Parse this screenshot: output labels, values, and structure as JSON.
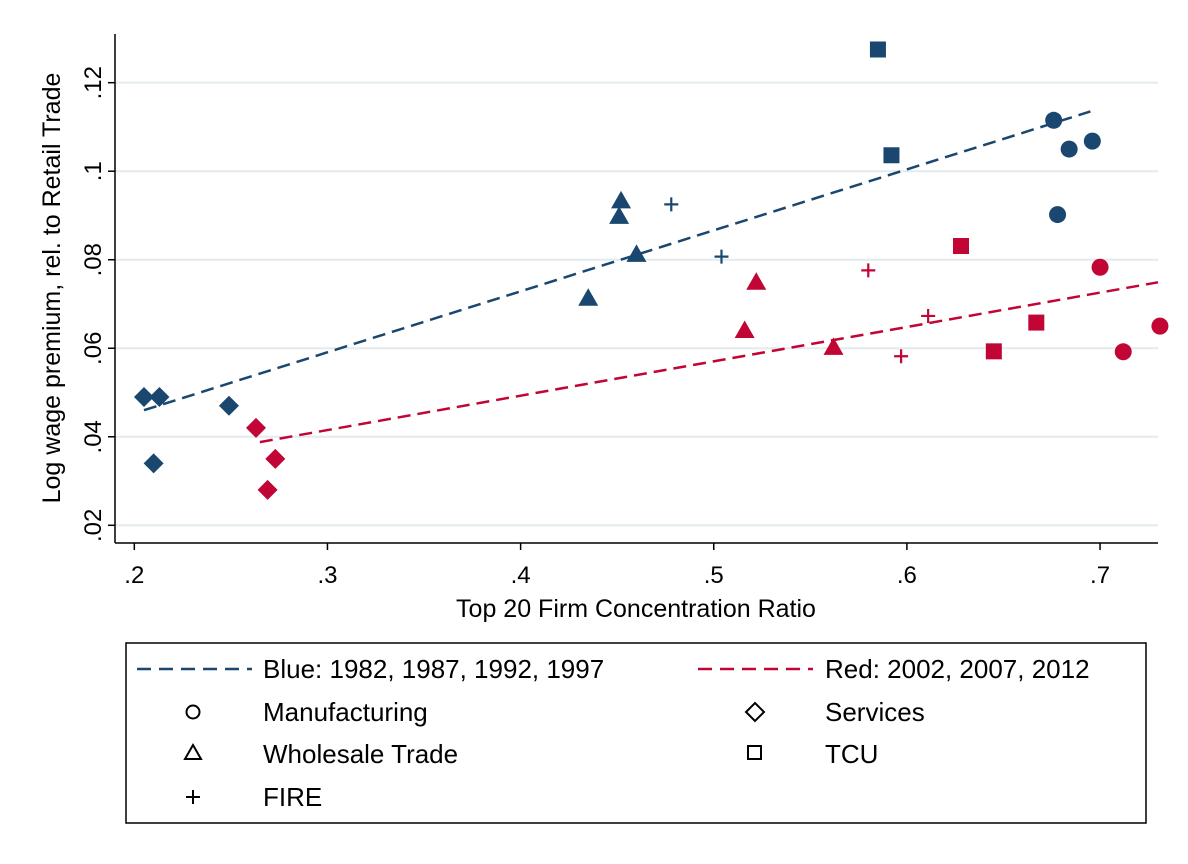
{
  "chart_data": {
    "type": "scatter",
    "title": "",
    "xlabel": "Top 20 Firm Concentration Ratio",
    "ylabel": "Log wage premium, rel. to Retail Trade",
    "xlim": [
      0.19,
      0.73
    ],
    "ylim": [
      0.016,
      0.131
    ],
    "x_ticks": [
      {
        "value": 0.2,
        "label": ".2"
      },
      {
        "value": 0.3,
        "label": ".3"
      },
      {
        "value": 0.4,
        "label": ".4"
      },
      {
        "value": 0.5,
        "label": ".5"
      },
      {
        "value": 0.6,
        "label": ".6"
      },
      {
        "value": 0.7,
        "label": ".7"
      }
    ],
    "y_ticks": [
      {
        "value": 0.02,
        "label": ".02"
      },
      {
        "value": 0.04,
        "label": ".04"
      },
      {
        "value": 0.06,
        "label": ".06"
      },
      {
        "value": 0.08,
        "label": ".08"
      },
      {
        "value": 0.1,
        "label": ".1"
      },
      {
        "value": 0.12,
        "label": ".12"
      }
    ],
    "grid": "horizontal",
    "legend_position": "bottom",
    "series": [
      {
        "name": "Blue: 1982, 1987, 1992, 1997",
        "color": "#1a476f",
        "fit_line": {
          "x": [
            0.205,
            0.695
          ],
          "y": [
            0.046,
            0.1135
          ]
        },
        "points": [
          {
            "x": 0.676,
            "y": 0.1115,
            "group": "Manufacturing"
          },
          {
            "x": 0.684,
            "y": 0.105,
            "group": "Manufacturing"
          },
          {
            "x": 0.696,
            "y": 0.1068,
            "group": "Manufacturing"
          },
          {
            "x": 0.678,
            "y": 0.0902,
            "group": "Manufacturing"
          },
          {
            "x": 0.585,
            "y": 0.1275,
            "group": "TCU"
          },
          {
            "x": 0.592,
            "y": 0.1036,
            "group": "TCU"
          },
          {
            "x": 0.452,
            "y": 0.0933,
            "group": "Wholesale Trade"
          },
          {
            "x": 0.451,
            "y": 0.0898,
            "group": "Wholesale Trade"
          },
          {
            "x": 0.46,
            "y": 0.0812,
            "group": "Wholesale Trade"
          },
          {
            "x": 0.435,
            "y": 0.0713,
            "group": "Wholesale Trade"
          },
          {
            "x": 0.478,
            "y": 0.0925,
            "group": "FIRE"
          },
          {
            "x": 0.504,
            "y": 0.0807,
            "group": "FIRE"
          },
          {
            "x": 0.205,
            "y": 0.049,
            "group": "Services"
          },
          {
            "x": 0.213,
            "y": 0.049,
            "group": "Services"
          },
          {
            "x": 0.21,
            "y": 0.034,
            "group": "Services"
          },
          {
            "x": 0.249,
            "y": 0.047,
            "group": "Services"
          }
        ]
      },
      {
        "name": "Red: 2002, 2007, 2012",
        "color": "#c10534",
        "fit_line": {
          "x": [
            0.265,
            0.73
          ],
          "y": [
            0.0388,
            0.0749
          ]
        },
        "points": [
          {
            "x": 0.7,
            "y": 0.0783,
            "group": "Manufacturing"
          },
          {
            "x": 0.712,
            "y": 0.0592,
            "group": "Manufacturing"
          },
          {
            "x": 0.731,
            "y": 0.065,
            "group": "Manufacturing"
          },
          {
            "x": 0.628,
            "y": 0.0831,
            "group": "TCU"
          },
          {
            "x": 0.667,
            "y": 0.0658,
            "group": "TCU"
          },
          {
            "x": 0.645,
            "y": 0.0593,
            "group": "TCU"
          },
          {
            "x": 0.522,
            "y": 0.0749,
            "group": "Wholesale Trade"
          },
          {
            "x": 0.516,
            "y": 0.064,
            "group": "Wholesale Trade"
          },
          {
            "x": 0.562,
            "y": 0.0602,
            "group": "Wholesale Trade"
          },
          {
            "x": 0.58,
            "y": 0.0776,
            "group": "FIRE"
          },
          {
            "x": 0.611,
            "y": 0.0673,
            "group": "FIRE"
          },
          {
            "x": 0.597,
            "y": 0.0582,
            "group": "FIRE"
          },
          {
            "x": 0.263,
            "y": 0.042,
            "group": "Services"
          },
          {
            "x": 0.273,
            "y": 0.035,
            "group": "Services"
          },
          {
            "x": 0.269,
            "y": 0.028,
            "group": "Services"
          }
        ]
      }
    ],
    "legend": {
      "lines": [
        {
          "label": "Blue: 1982, 1987, 1992, 1997",
          "color": "#1a476f"
        },
        {
          "label": "Red: 2002, 2007, 2012",
          "color": "#c10534"
        }
      ],
      "markers": [
        {
          "label": "Manufacturing",
          "marker": "circle"
        },
        {
          "label": "Services",
          "marker": "diamond"
        },
        {
          "label": "Wholesale Trade",
          "marker": "triangle"
        },
        {
          "label": "TCU",
          "marker": "square"
        },
        {
          "label": "FIRE",
          "marker": "plus"
        }
      ]
    },
    "marker_by_group": {
      "Manufacturing": "circle",
      "Services": "diamond",
      "Wholesale Trade": "triangle",
      "TCU": "square",
      "FIRE": "plus"
    }
  }
}
